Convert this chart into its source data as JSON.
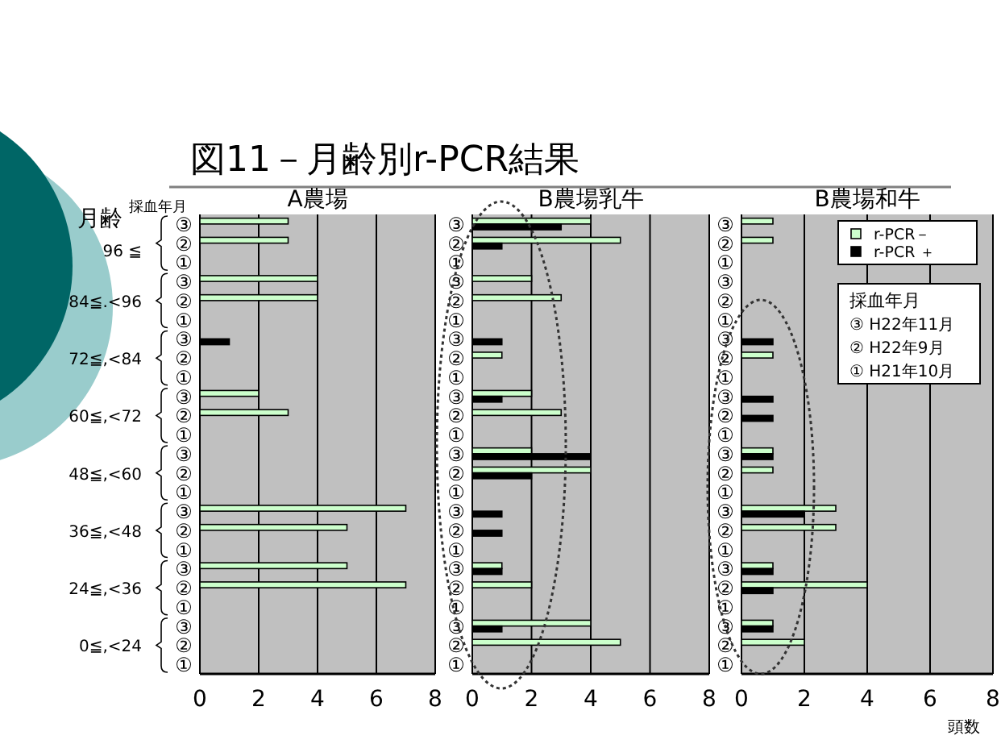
{
  "chart_data": [
    {
      "type": "bar",
      "orientation": "horizontal",
      "title": "A農場",
      "ylabel": "月齢",
      "categories": [
        "③",
        "②",
        "①",
        "③",
        "②",
        "①",
        "③",
        "②",
        "①",
        "③",
        "②",
        "①",
        "③",
        "②",
        "①",
        "③",
        "②",
        "①",
        "③",
        "②",
        "①",
        "③",
        "②",
        "①"
      ],
      "xlim": [
        0,
        8
      ],
      "xticks": [
        0,
        2,
        4,
        6,
        8
      ],
      "grid": "x",
      "annotations": [
        "図11－月齢別r-PCR結果",
        "採血年月",
        "96 ≦",
        "84≦.<96",
        "72≦,<84",
        "60≦,<72",
        "48≦,<60",
        "36≦,<48",
        "24≦,<36",
        "0≦,<24"
      ],
      "series": [
        {
          "color": "#ccffcc",
          "values": [
            3,
            3,
            null,
            4,
            4,
            null,
            null,
            null,
            null,
            2,
            3,
            null,
            null,
            null,
            null,
            7,
            5,
            null,
            5,
            7,
            null,
            null,
            null,
            null
          ]
        },
        {
          "color": "#000000",
          "values": [
            null,
            null,
            null,
            null,
            null,
            null,
            1,
            null,
            null,
            null,
            null,
            null,
            null,
            null,
            null,
            null,
            null,
            null,
            null,
            null,
            null,
            null,
            null,
            null
          ]
        }
      ]
    },
    {
      "type": "bar",
      "orientation": "horizontal",
      "title": "B農場乳牛",
      "categories": [
        "③",
        "②",
        "①",
        "③",
        "②",
        "①",
        "③",
        "②",
        "①",
        "③",
        "②",
        "①",
        "③",
        "②",
        "①",
        "③",
        "②",
        "①",
        "③",
        "②",
        "①",
        "③",
        "②",
        "①"
      ],
      "xlim": [
        0,
        8
      ],
      "xticks": [
        0,
        2,
        4,
        6,
        8
      ],
      "grid": "x",
      "series": [
        {
          "color": "#ccffcc",
          "values": [
            4,
            5,
            null,
            2,
            3,
            null,
            null,
            1,
            null,
            2,
            3,
            null,
            2,
            4,
            null,
            null,
            null,
            null,
            1,
            2,
            null,
            4,
            5,
            null
          ]
        },
        {
          "color": "#000000",
          "values": [
            3,
            1,
            null,
            null,
            null,
            null,
            1,
            null,
            null,
            1,
            null,
            null,
            4,
            2,
            null,
            1,
            1,
            null,
            1,
            null,
            null,
            1,
            null,
            null
          ]
        }
      ]
    },
    {
      "type": "bar",
      "orientation": "horizontal",
      "title": "B農場和牛",
      "xlabel": "頭数",
      "categories": [
        "③",
        "②",
        "①",
        "③",
        "②",
        "①",
        "③",
        "②",
        "①",
        "③",
        "②",
        "①",
        "③",
        "②",
        "①",
        "③",
        "②",
        "①",
        "③",
        "②",
        "①",
        "③",
        "②",
        "①"
      ],
      "xlim": [
        0,
        8
      ],
      "xticks": [
        0,
        2,
        4,
        6,
        8
      ],
      "grid": "x",
      "legend": "top right",
      "annotations": [
        "採血年月",
        "③  H22年11月",
        "②  H22年9月",
        "①  H21年10月"
      ],
      "series": [
        {
          "name": "r-PCR－",
          "color": "#ccffcc",
          "values": [
            1,
            1,
            null,
            null,
            null,
            null,
            null,
            1,
            null,
            null,
            null,
            null,
            1,
            1,
            null,
            3,
            3,
            null,
            1,
            4,
            null,
            1,
            2,
            null
          ]
        },
        {
          "name": "r-PCR ＋",
          "color": "#000000",
          "values": [
            null,
            null,
            null,
            null,
            null,
            null,
            1,
            null,
            null,
            1,
            1,
            null,
            1,
            null,
            null,
            2,
            null,
            null,
            1,
            1,
            null,
            1,
            null,
            null
          ]
        }
      ]
    }
  ]
}
